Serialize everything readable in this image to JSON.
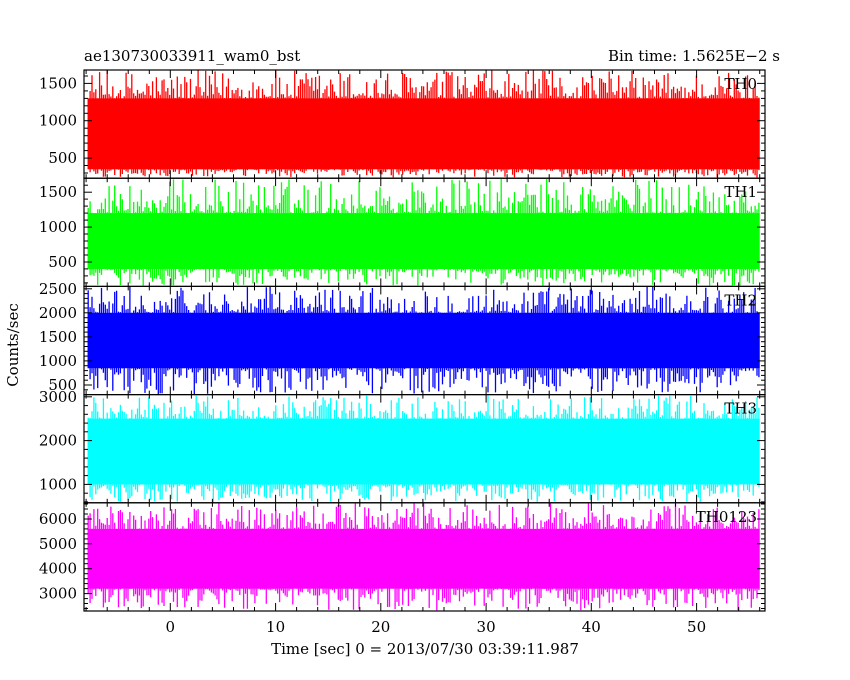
{
  "chart_data": {
    "type": "line",
    "title_left": "ae130730033911_wam0_bst",
    "title_right": "Bin time: 1.5625E−2 s",
    "xlabel": "Time [sec] 0 = 2013/07/30 03:39:11.987",
    "ylabel": "Counts/sec",
    "xlim": [
      -8.2,
      56.5
    ],
    "x_ticks": [
      0,
      10,
      20,
      30,
      40,
      50
    ],
    "x_tick_labels": [
      "0",
      "10",
      "20",
      "30",
      "40",
      "50"
    ],
    "data_x_range": [
      -7.8,
      56
    ],
    "grid": false,
    "panels": [
      {
        "label": "TH0",
        "color": "#ff0000",
        "ylim": [
          230,
          1680
        ],
        "y_ticks": [
          500,
          1000,
          1500
        ],
        "y_tick_labels": [
          "500",
          "1000",
          "1500"
        ],
        "baseline": 820,
        "band_low": 350,
        "band_high": 1300,
        "peak_max": 1680,
        "trough_min": 240
      },
      {
        "label": "TH1",
        "color": "#00ff00",
        "ylim": [
          150,
          1700
        ],
        "y_ticks": [
          500,
          1000,
          1500
        ],
        "y_tick_labels": [
          "500",
          "1000",
          "1500"
        ],
        "baseline": 820,
        "band_low": 400,
        "band_high": 1200,
        "peak_max": 1700,
        "trough_min": 160
      },
      {
        "label": "TH2",
        "color": "#0000ff",
        "ylim": [
          300,
          2550
        ],
        "y_ticks": [
          500,
          1000,
          1500,
          2000,
          2500
        ],
        "y_tick_labels": [
          "500",
          "1000",
          "1500",
          "2000",
          "2500"
        ],
        "baseline": 1400,
        "band_low": 850,
        "band_high": 2000,
        "peak_max": 2550,
        "trough_min": 310
      },
      {
        "label": "TH3",
        "color": "#00ffff",
        "ylim": [
          580,
          3050
        ],
        "y_ticks": [
          1000,
          2000,
          3000
        ],
        "y_tick_labels": [
          "1000",
          "2000",
          "3000"
        ],
        "baseline": 1650,
        "band_low": 1000,
        "band_high": 2500,
        "peak_max": 3050,
        "trough_min": 590
      },
      {
        "label": "TH0123",
        "color": "#ff00ff",
        "ylim": [
          2300,
          6650
        ],
        "y_ticks": [
          3000,
          4000,
          5000,
          6000
        ],
        "y_tick_labels": [
          "3000",
          "4000",
          "5000",
          "6000"
        ],
        "baseline": 4400,
        "band_low": 3200,
        "band_high": 5600,
        "peak_max": 6650,
        "trough_min": 2310
      }
    ]
  }
}
